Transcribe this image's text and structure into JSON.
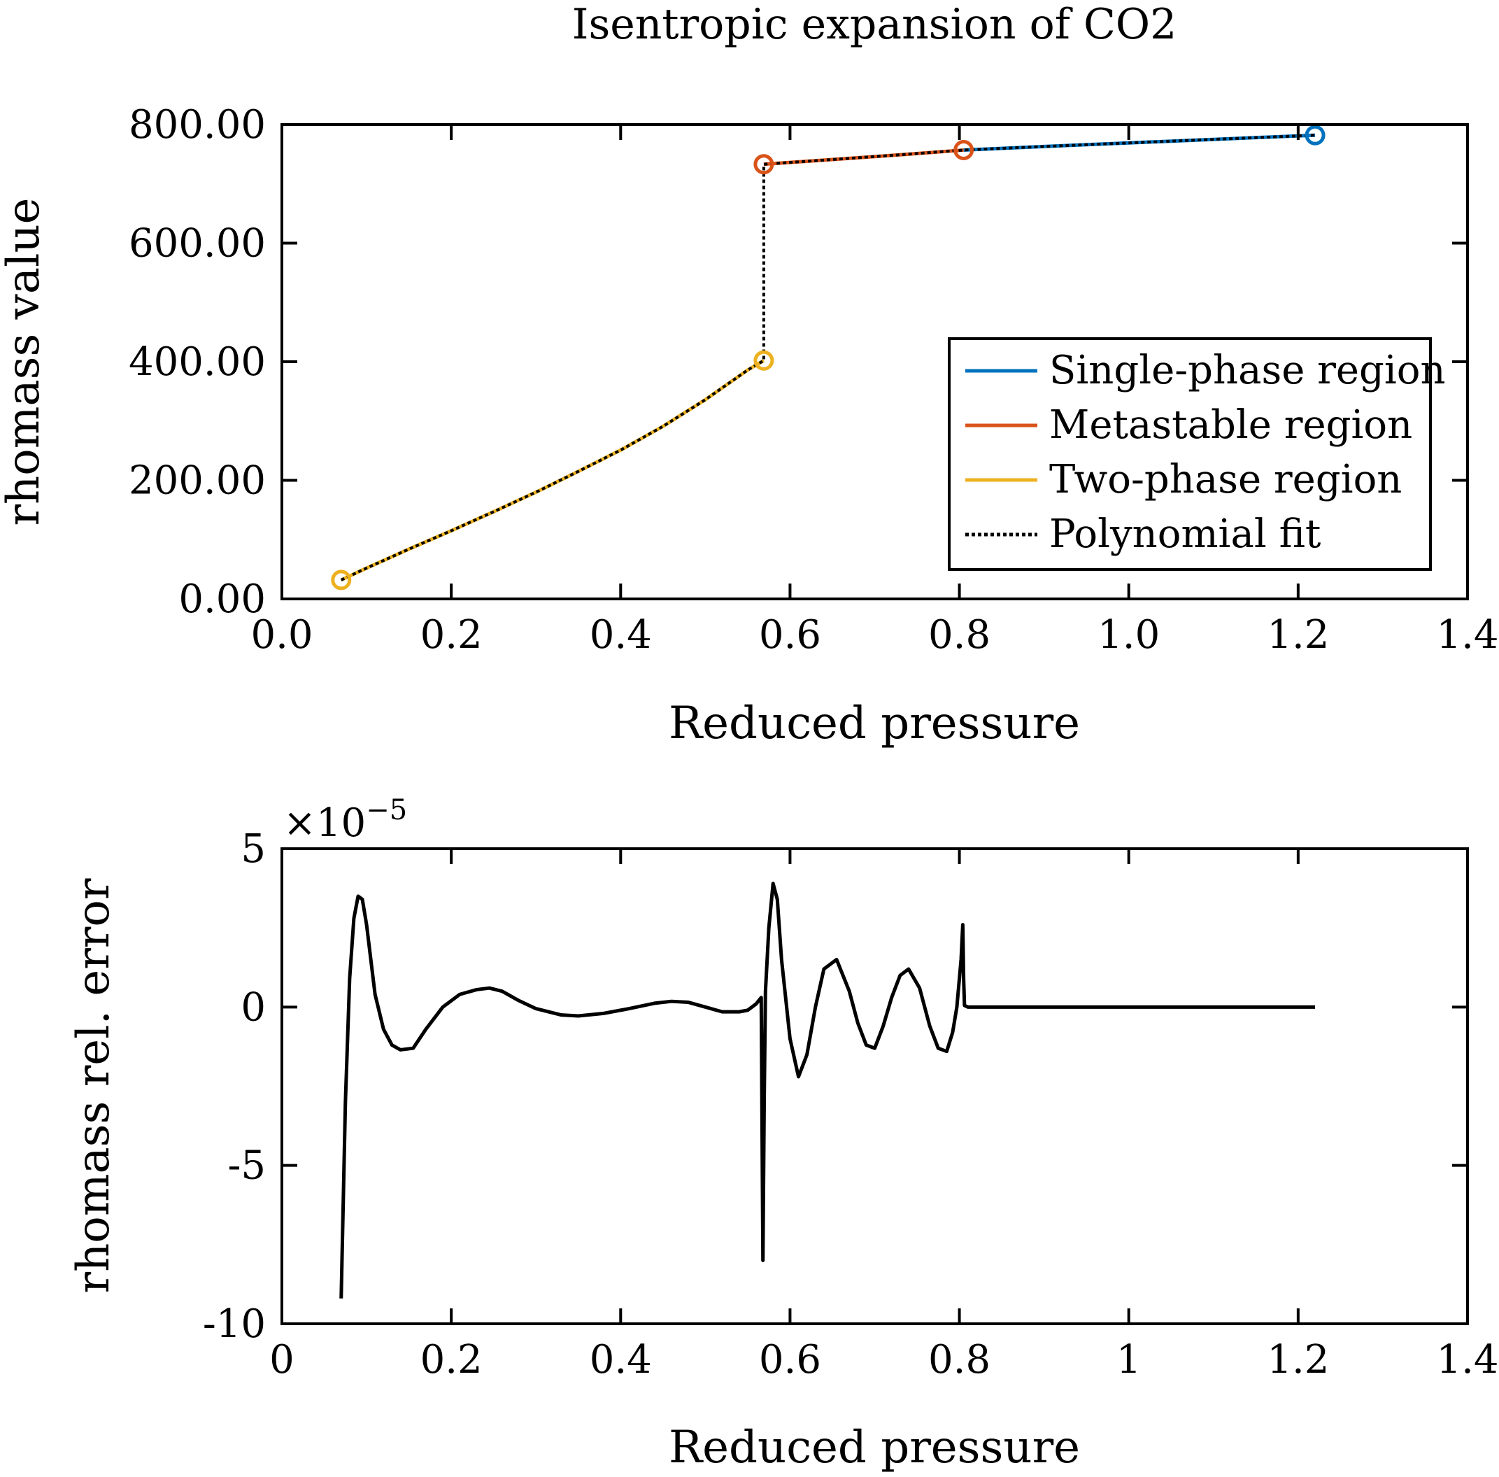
{
  "figure": {
    "title": "Isentropic expansion of CO2"
  },
  "colors": {
    "single_phase": "#0072BD",
    "metastable": "#D95319",
    "two_phase": "#EDB120",
    "fit": "#000000"
  },
  "chart_data": [
    {
      "type": "line",
      "title": "Isentropic expansion of CO2",
      "xlabel": "Reduced pressure",
      "ylabel": "rhomass value",
      "xlim": [
        0,
        1.4
      ],
      "ylim": [
        0,
        800
      ],
      "xticks": [
        0,
        0.2,
        0.4,
        0.6,
        0.8,
        1.0,
        1.2,
        1.4
      ],
      "xtick_labels": [
        "0.0",
        "0.2",
        "0.4",
        "0.6",
        "0.8",
        "1.0",
        "1.2",
        "1.4"
      ],
      "yticks": [
        0,
        200,
        400,
        600,
        800
      ],
      "ytick_labels": [
        "0.00",
        "200.00",
        "400.00",
        "600.00",
        "800.00"
      ],
      "grid": false,
      "legend_position": "right",
      "series": [
        {
          "name": "Single-phase region",
          "color": "#0072BD",
          "style": "solid",
          "x": [
            0.805,
            0.9,
            1.0,
            1.1,
            1.22
          ],
          "y": [
            757,
            763,
            769,
            775,
            782
          ],
          "markers": [
            [
              1.22,
              782
            ]
          ]
        },
        {
          "name": "Metastable region",
          "color": "#D95319",
          "style": "solid",
          "x": [
            0.569,
            0.65,
            0.73,
            0.805
          ],
          "y": [
            733,
            741,
            749,
            757
          ],
          "markers": [
            [
              0.569,
              733
            ],
            [
              0.805,
              757
            ]
          ]
        },
        {
          "name": "Two-phase region",
          "color": "#EDB120",
          "style": "solid",
          "x": [
            0.07,
            0.1,
            0.15,
            0.2,
            0.25,
            0.3,
            0.35,
            0.4,
            0.45,
            0.5,
            0.55,
            0.569
          ],
          "y": [
            32,
            52,
            84,
            115,
            147,
            180,
            215,
            251,
            291,
            336,
            386,
            402
          ],
          "markers": [
            [
              0.07,
              32
            ],
            [
              0.569,
              402
            ]
          ]
        },
        {
          "name": "Polynomial fit",
          "color": "#000000",
          "style": "dotted",
          "x": [
            0.07,
            0.1,
            0.15,
            0.2,
            0.25,
            0.3,
            0.35,
            0.4,
            0.45,
            0.5,
            0.55,
            0.569,
            0.569,
            0.65,
            0.73,
            0.805,
            0.9,
            1.0,
            1.1,
            1.22
          ],
          "y": [
            32,
            52,
            84,
            115,
            147,
            180,
            215,
            251,
            291,
            336,
            386,
            402,
            733,
            741,
            749,
            757,
            763,
            769,
            775,
            782
          ]
        }
      ]
    },
    {
      "type": "line",
      "xlabel": "Reduced pressure",
      "ylabel": "rhomass rel. error",
      "exponent_label": "×10",
      "exponent_power": "−5",
      "xlim": [
        0,
        1.4
      ],
      "ylim": [
        -10,
        5
      ],
      "xticks": [
        0,
        0.2,
        0.4,
        0.6,
        0.8,
        1.0,
        1.2,
        1.4
      ],
      "xtick_labels": [
        "0",
        "0.2",
        "0.4",
        "0.6",
        "0.8",
        "1",
        "1.2",
        "1.4"
      ],
      "yticks": [
        -10,
        -5,
        0,
        5
      ],
      "ytick_labels": [
        "-10",
        "-5",
        "0",
        "5"
      ],
      "grid": false,
      "series": [
        {
          "color": "#000000",
          "style": "solid",
          "x": [
            0.07,
            0.075,
            0.08,
            0.085,
            0.09,
            0.095,
            0.1,
            0.11,
            0.12,
            0.13,
            0.14,
            0.155,
            0.17,
            0.19,
            0.21,
            0.23,
            0.245,
            0.26,
            0.28,
            0.3,
            0.33,
            0.35,
            0.38,
            0.41,
            0.44,
            0.46,
            0.48,
            0.5,
            0.52,
            0.54,
            0.55,
            0.56,
            0.566,
            0.568,
            0.5695,
            0.571,
            0.575,
            0.58,
            0.585,
            0.59,
            0.6,
            0.61,
            0.62,
            0.63,
            0.64,
            0.655,
            0.67,
            0.68,
            0.69,
            0.7,
            0.71,
            0.72,
            0.73,
            0.74,
            0.753,
            0.765,
            0.775,
            0.785,
            0.792,
            0.797,
            0.802,
            0.804,
            0.805,
            0.806,
            0.81,
            0.85,
            0.9,
            1.0,
            1.1,
            1.22
          ],
          "y": [
            -9.2,
            -3.0,
            0.9,
            2.8,
            3.5,
            3.4,
            2.6,
            0.4,
            -0.7,
            -1.2,
            -1.35,
            -1.3,
            -0.7,
            0.0,
            0.4,
            0.55,
            0.6,
            0.5,
            0.2,
            -0.05,
            -0.25,
            -0.28,
            -0.2,
            -0.05,
            0.12,
            0.18,
            0.15,
            0.0,
            -0.15,
            -0.15,
            -0.1,
            0.1,
            0.3,
            -8.0,
            -3.0,
            0.5,
            2.5,
            3.9,
            3.4,
            1.5,
            -1.0,
            -2.2,
            -1.5,
            0.0,
            1.2,
            1.5,
            0.5,
            -0.5,
            -1.2,
            -1.3,
            -0.6,
            0.3,
            1.0,
            1.2,
            0.6,
            -0.6,
            -1.3,
            -1.4,
            -0.8,
            0.0,
            1.5,
            2.6,
            0.9,
            0.05,
            0.0,
            0.0,
            0.0,
            0.0,
            0.0,
            0.0
          ]
        }
      ]
    }
  ]
}
